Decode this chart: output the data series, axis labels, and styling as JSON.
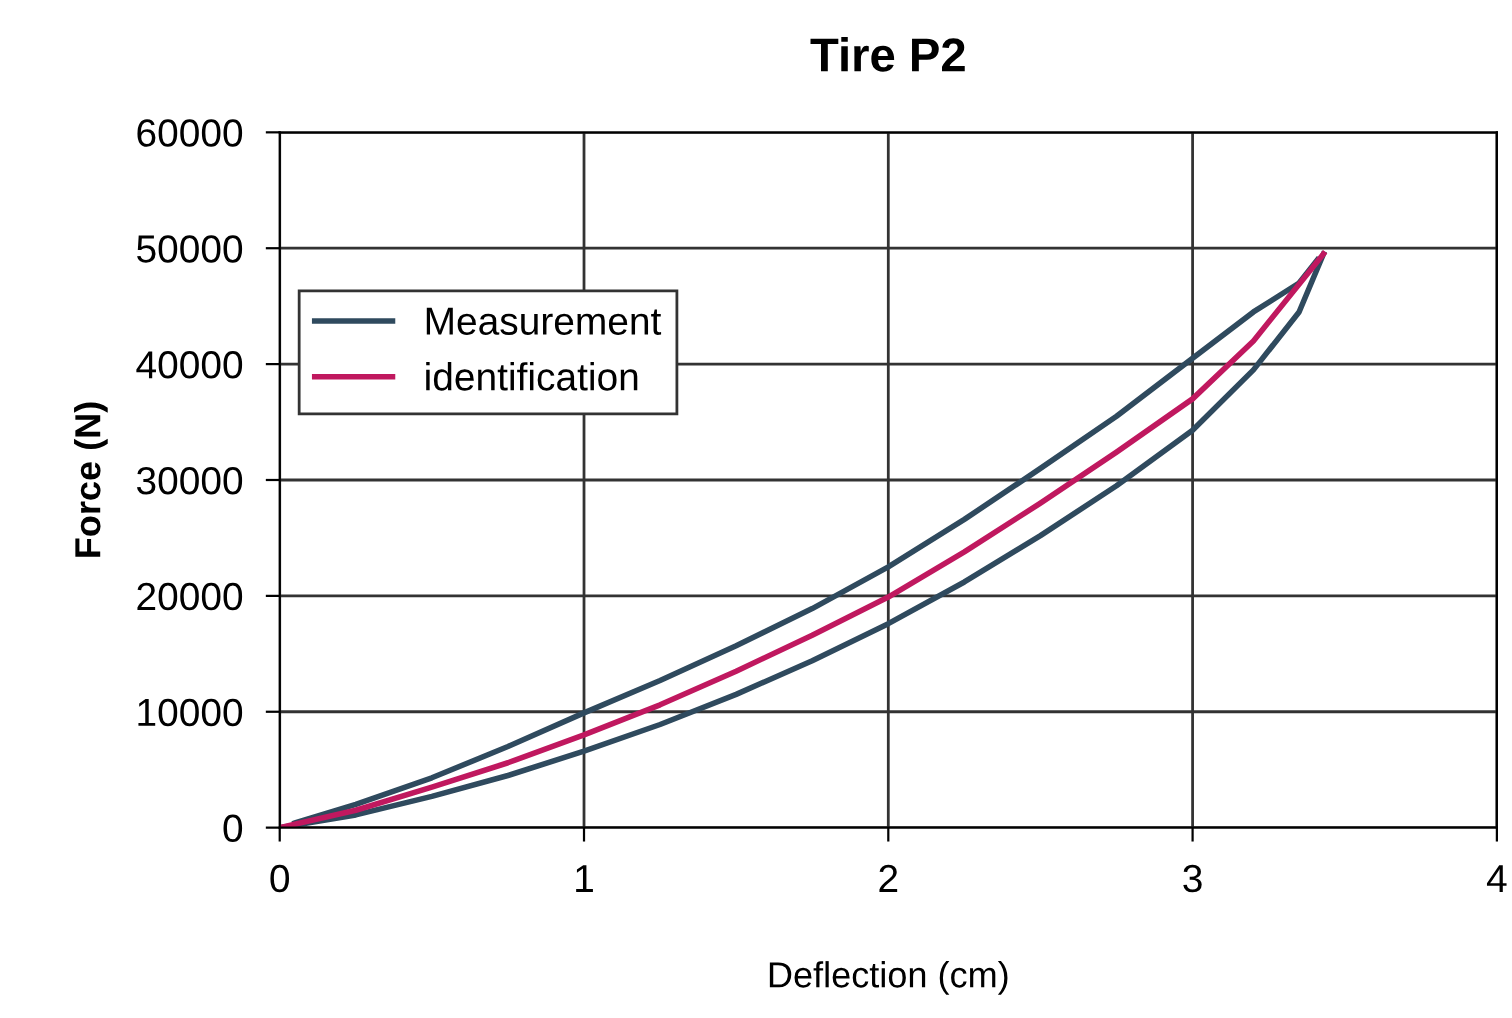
{
  "chart_data": {
    "type": "line",
    "title": "Tire P2",
    "xlabel": "Deflection (cm)",
    "ylabel": "Force (N)",
    "xlim": [
      0,
      4
    ],
    "xticks": [
      0,
      1,
      2,
      3,
      4
    ],
    "ylim": [
      0,
      60000
    ],
    "yticks": [
      0,
      10000,
      20000,
      30000,
      40000,
      50000,
      60000
    ],
    "grid": true,
    "legend": "top left",
    "series": [
      {
        "name": "Measurement",
        "color": "#2f4a5e",
        "x": [
          0,
          0.25,
          0.5,
          0.75,
          1,
          1.25,
          1.5,
          1.75,
          2,
          2.25,
          2.5,
          2.75,
          3,
          3.2,
          3.35,
          3.43
        ],
        "values": [
          0,
          1100,
          2700,
          4500,
          6600,
          8900,
          11500,
          14400,
          17600,
          21200,
          25200,
          29500,
          34300,
          39500,
          44500,
          49500
        ]
      },
      {
        "color": "#2f4a5e",
        "x": [
          0.05,
          0.25,
          0.5,
          0.75,
          1,
          1.25,
          1.5,
          1.75,
          2,
          2.25,
          2.5,
          2.75,
          3,
          3.2,
          3.35,
          3.41
        ],
        "values": [
          400,
          2000,
          4300,
          7000,
          9900,
          12700,
          15700,
          18900,
          22500,
          26600,
          31000,
          35500,
          40500,
          44500,
          47000,
          49000
        ]
      },
      {
        "name": "identification",
        "color": "#c0185f",
        "x": [
          0,
          0.25,
          0.5,
          0.75,
          1,
          1.25,
          1.5,
          1.75,
          2,
          2.25,
          2.5,
          2.75,
          3,
          3.2,
          3.43
        ],
        "values": [
          0,
          1500,
          3500,
          5600,
          8000,
          10600,
          13500,
          16600,
          19900,
          23800,
          28000,
          32400,
          37000,
          42000,
          49500
        ]
      }
    ]
  }
}
